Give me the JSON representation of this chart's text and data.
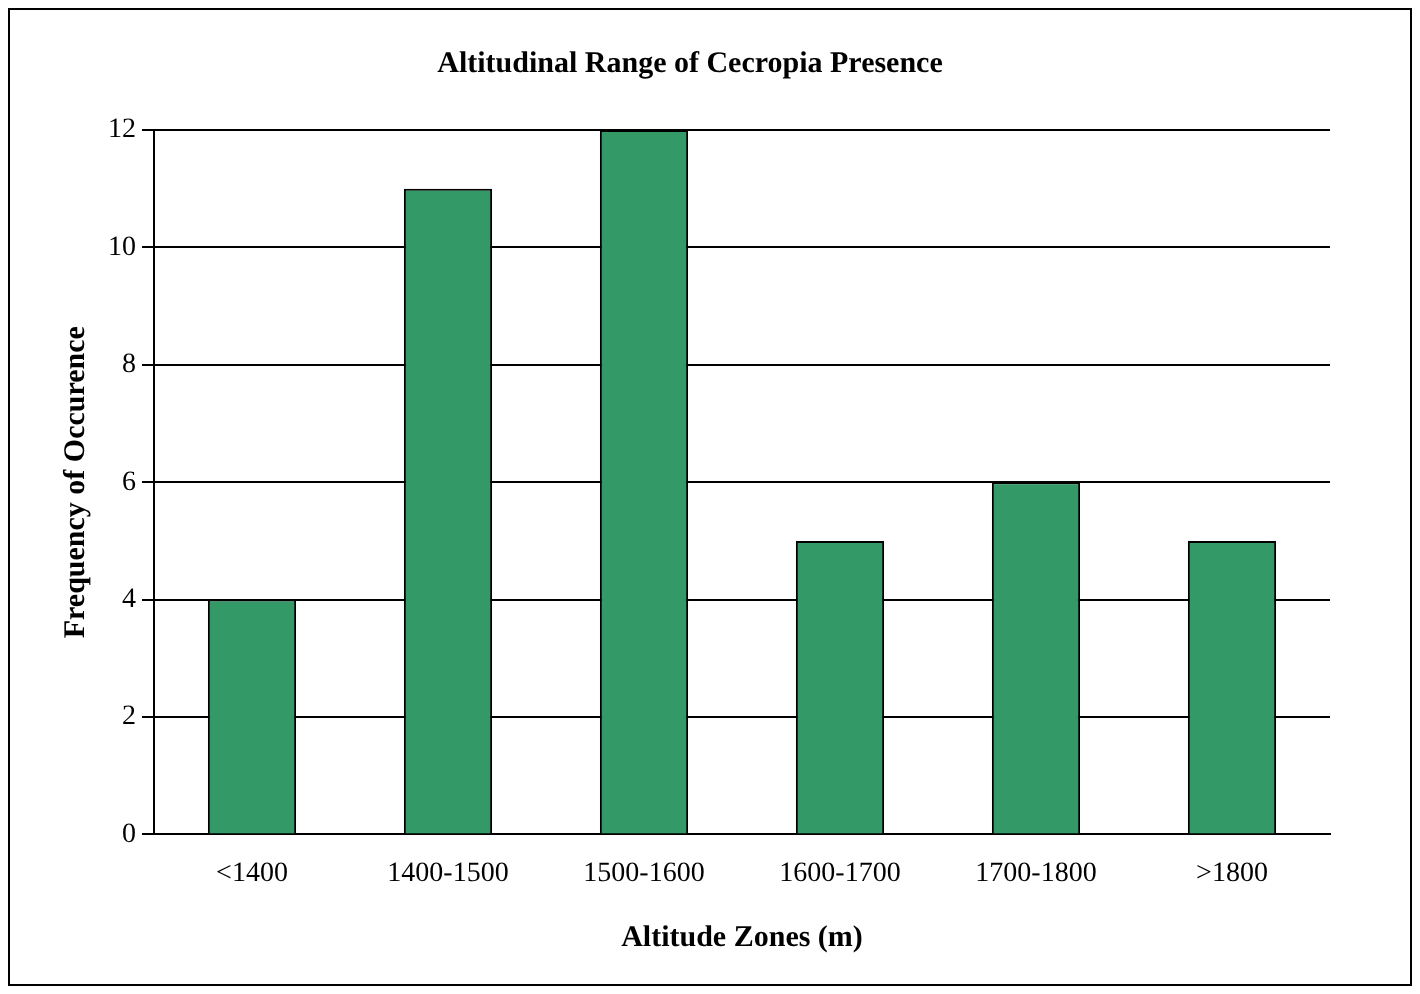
{
  "chart_data": {
    "type": "bar",
    "title": "Altitudinal Range of Cecropia Presence",
    "xlabel": "Altitude Zones (m)",
    "ylabel": "Frequency of Occurence",
    "categories": [
      "<1400",
      "1400-1500",
      "1500-1600",
      "1600-1700",
      "1700-1800",
      ">1800"
    ],
    "values": [
      4,
      11,
      12,
      5,
      6,
      5
    ],
    "color": "#339966",
    "ylim": [
      0,
      12
    ],
    "yticks": [
      0,
      2,
      4,
      6,
      8,
      10,
      12
    ],
    "grid": "y",
    "legend": false
  }
}
